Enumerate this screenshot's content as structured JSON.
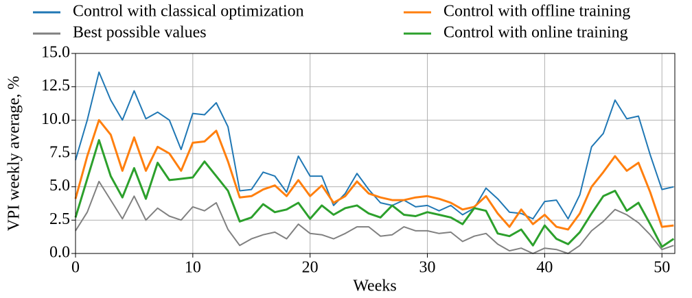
{
  "chart_data": {
    "type": "line",
    "xlabel": "Weeks",
    "ylabel": "VPI weekly average, %",
    "x": [
      0,
      1,
      2,
      3,
      4,
      5,
      6,
      7,
      8,
      9,
      10,
      11,
      12,
      13,
      14,
      15,
      16,
      17,
      18,
      19,
      20,
      21,
      22,
      23,
      24,
      25,
      26,
      27,
      28,
      29,
      30,
      31,
      32,
      33,
      34,
      35,
      36,
      37,
      38,
      39,
      40,
      41,
      42,
      43,
      44,
      45,
      46,
      47,
      48,
      49,
      50,
      51
    ],
    "xlim": [
      0,
      51.1
    ],
    "xticks": [
      0,
      10,
      20,
      30,
      40,
      50
    ],
    "ylim": [
      0,
      15
    ],
    "yticks": [
      {
        "value": 0,
        "label": "0.0"
      },
      2.5,
      {
        "value": 5,
        "label": "5.0"
      },
      7.5,
      {
        "value": 10,
        "label": "10.0"
      },
      12.5,
      {
        "value": 15,
        "label": "15.0"
      }
    ],
    "grid": true,
    "legend": "top",
    "series": [
      {
        "name": "Control with classical optimization",
        "color": "#1f77b4",
        "values": [
          7.0,
          10.0,
          13.6,
          11.5,
          10.0,
          12.2,
          10.1,
          10.6,
          10.0,
          7.8,
          10.5,
          10.4,
          11.3,
          9.5,
          4.7,
          4.8,
          6.1,
          5.8,
          4.6,
          7.3,
          5.8,
          5.8,
          3.6,
          4.5,
          6.0,
          4.8,
          3.8,
          3.6,
          4.0,
          3.5,
          3.6,
          3.2,
          3.6,
          2.9,
          3.4,
          4.9,
          4.1,
          3.1,
          3.0,
          2.6,
          3.9,
          4.0,
          2.6,
          4.4,
          8.0,
          9.0,
          11.5,
          10.1,
          10.3,
          7.4,
          4.8,
          5.0
        ]
      },
      {
        "name": "Best possible values",
        "color": "#808080",
        "values": [
          1.7,
          3.1,
          5.4,
          4.0,
          2.6,
          4.3,
          2.5,
          3.4,
          2.8,
          2.5,
          3.5,
          3.2,
          3.8,
          1.8,
          0.6,
          1.1,
          1.4,
          1.6,
          1.1,
          2.2,
          1.5,
          1.4,
          1.1,
          1.5,
          2.0,
          2.0,
          1.3,
          1.4,
          2.0,
          1.7,
          1.7,
          1.5,
          1.6,
          0.9,
          1.3,
          1.5,
          0.7,
          0.2,
          0.4,
          0.0,
          0.4,
          0.3,
          0.0,
          0.6,
          1.7,
          2.4,
          3.3,
          2.9,
          2.3,
          1.4,
          0.3,
          0.6
        ]
      },
      {
        "name": "Control with offline training",
        "color": "#ff7f0e",
        "values": [
          4.1,
          7.3,
          10.0,
          8.9,
          6.2,
          8.7,
          6.2,
          8.0,
          7.5,
          6.2,
          8.3,
          8.4,
          9.2,
          6.9,
          4.2,
          4.3,
          4.8,
          5.1,
          4.3,
          5.5,
          4.3,
          5.1,
          3.8,
          4.3,
          5.4,
          4.5,
          4.2,
          4.0,
          4.0,
          4.2,
          4.3,
          4.1,
          3.8,
          3.3,
          3.5,
          4.3,
          3.0,
          2.0,
          3.3,
          2.2,
          2.9,
          2.0,
          1.8,
          3.0,
          5.0,
          6.1,
          7.3,
          6.2,
          6.8,
          4.6,
          2.0,
          2.1
        ]
      },
      {
        "name": "Control with online training",
        "color": "#2ca02c",
        "values": [
          2.7,
          5.6,
          8.5,
          5.8,
          4.2,
          6.4,
          4.1,
          6.8,
          5.5,
          5.6,
          5.7,
          6.9,
          5.8,
          4.7,
          2.4,
          2.7,
          3.7,
          3.1,
          3.3,
          3.8,
          2.6,
          3.6,
          2.9,
          3.4,
          3.6,
          3.0,
          2.7,
          3.6,
          2.9,
          2.8,
          3.1,
          2.9,
          2.7,
          2.2,
          3.4,
          3.2,
          1.5,
          1.3,
          1.8,
          0.6,
          2.1,
          1.1,
          0.7,
          1.6,
          3.0,
          4.3,
          4.7,
          3.2,
          3.8,
          2.2,
          0.5,
          1.1
        ]
      }
    ]
  }
}
